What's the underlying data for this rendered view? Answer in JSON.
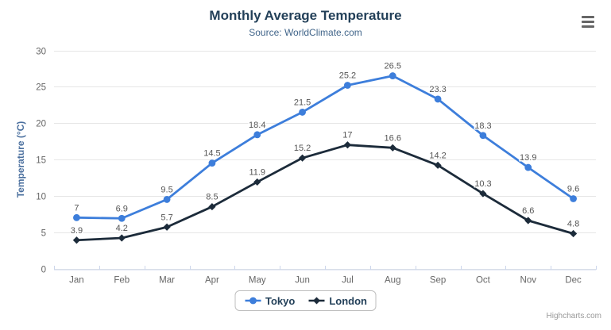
{
  "header": {
    "title": "Monthly Average Temperature",
    "subtitle": "Source: WorldClimate.com"
  },
  "chart_data": {
    "type": "line",
    "title": "Monthly Average Temperature",
    "subtitle": "Source: WorldClimate.com",
    "categories": [
      "Jan",
      "Feb",
      "Mar",
      "Apr",
      "May",
      "Jun",
      "Jul",
      "Aug",
      "Sep",
      "Oct",
      "Nov",
      "Dec"
    ],
    "series": [
      {
        "name": "Tokyo",
        "color": "#3d7edb",
        "marker": "circle",
        "values": [
          7,
          6.9,
          9.5,
          14.5,
          18.4,
          21.5,
          25.2,
          26.5,
          23.3,
          18.3,
          13.9,
          9.6
        ]
      },
      {
        "name": "London",
        "color": "#1c2b3a",
        "marker": "diamond",
        "values": [
          3.9,
          4.2,
          5.7,
          8.5,
          11.9,
          15.2,
          17,
          16.6,
          14.2,
          10.3,
          6.6,
          4.8
        ]
      }
    ],
    "xlabel": "",
    "ylabel": "Temperature (°C)",
    "ylim": [
      0,
      30
    ],
    "yticks": [
      0,
      5,
      10,
      15,
      20,
      25,
      30
    ],
    "grid": true,
    "data_labels": true,
    "legend_position": "bottom-center"
  },
  "colors": {
    "background": "#ffffff",
    "title": "#234059",
    "subtitle": "#41658a",
    "axis_title": "#4a6f9e",
    "axis_labels": "#666666",
    "data_labels": "#555555",
    "gridline": "#e6e6e6",
    "axis_line": "#ccd6eb",
    "legend_border": "#bfbfbf",
    "credits": "#999999",
    "tokyo": "#3d7edb",
    "london": "#1c2b3a"
  },
  "icons": {
    "menu": "hamburger-icon"
  },
  "credits": {
    "label": "Highcharts.com"
  }
}
